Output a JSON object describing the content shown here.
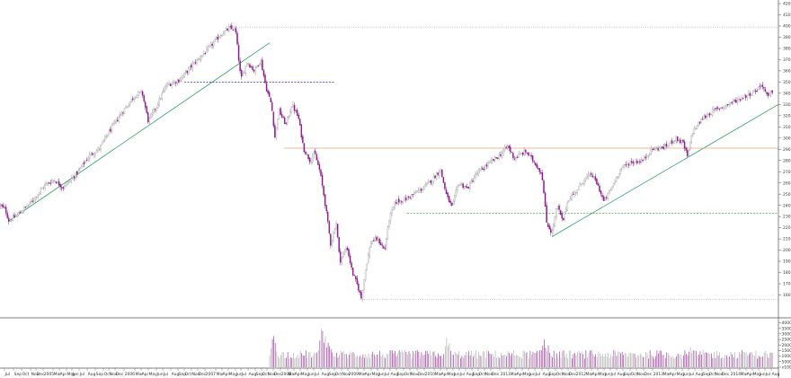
{
  "chart_data": {
    "type": "candlestick",
    "title": "",
    "xlabel": "",
    "ylabel": "",
    "grid": false,
    "legend": "none",
    "price": {
      "ylim": [
        150,
        420
      ],
      "yticks": [
        160,
        170,
        180,
        190,
        200,
        210,
        220,
        230,
        240,
        250,
        260,
        270,
        280,
        290,
        300,
        310,
        320,
        330,
        340,
        350,
        360,
        370,
        380,
        390,
        400,
        410,
        420
      ],
      "series": [
        {
          "x": 0,
          "y": 240
        },
        {
          "x": 6,
          "y": 236
        },
        {
          "x": 10,
          "y": 226
        },
        {
          "x": 20,
          "y": 232
        },
        {
          "x": 35,
          "y": 243
        },
        {
          "x": 50,
          "y": 258
        },
        {
          "x": 60,
          "y": 263
        },
        {
          "x": 70,
          "y": 256
        },
        {
          "x": 85,
          "y": 268
        },
        {
          "x": 100,
          "y": 285
        },
        {
          "x": 110,
          "y": 290
        },
        {
          "x": 120,
          "y": 304
        },
        {
          "x": 135,
          "y": 322
        },
        {
          "x": 150,
          "y": 338
        },
        {
          "x": 158,
          "y": 341
        },
        {
          "x": 165,
          "y": 315
        },
        {
          "x": 175,
          "y": 330
        },
        {
          "x": 185,
          "y": 347
        },
        {
          "x": 200,
          "y": 352
        },
        {
          "x": 215,
          "y": 366
        },
        {
          "x": 230,
          "y": 378
        },
        {
          "x": 245,
          "y": 392
        },
        {
          "x": 255,
          "y": 398
        },
        {
          "x": 262,
          "y": 397
        },
        {
          "x": 268,
          "y": 352
        },
        {
          "x": 275,
          "y": 368
        },
        {
          "x": 283,
          "y": 360
        },
        {
          "x": 290,
          "y": 370
        },
        {
          "x": 296,
          "y": 345
        },
        {
          "x": 302,
          "y": 330
        },
        {
          "x": 306,
          "y": 300
        },
        {
          "x": 310,
          "y": 325
        },
        {
          "x": 318,
          "y": 312
        },
        {
          "x": 325,
          "y": 330
        },
        {
          "x": 332,
          "y": 318
        },
        {
          "x": 338,
          "y": 290
        },
        {
          "x": 345,
          "y": 280
        },
        {
          "x": 350,
          "y": 287
        },
        {
          "x": 356,
          "y": 270
        },
        {
          "x": 362,
          "y": 240
        },
        {
          "x": 368,
          "y": 205
        },
        {
          "x": 374,
          "y": 225
        },
        {
          "x": 378,
          "y": 190
        },
        {
          "x": 386,
          "y": 203
        },
        {
          "x": 392,
          "y": 180
        },
        {
          "x": 398,
          "y": 168
        },
        {
          "x": 402,
          "y": 157
        },
        {
          "x": 407,
          "y": 185
        },
        {
          "x": 413,
          "y": 208
        },
        {
          "x": 420,
          "y": 210
        },
        {
          "x": 428,
          "y": 200
        },
        {
          "x": 433,
          "y": 228
        },
        {
          "x": 440,
          "y": 243
        },
        {
          "x": 450,
          "y": 245
        },
        {
          "x": 460,
          "y": 250
        },
        {
          "x": 470,
          "y": 255
        },
        {
          "x": 480,
          "y": 262
        },
        {
          "x": 490,
          "y": 272
        },
        {
          "x": 497,
          "y": 248
        },
        {
          "x": 503,
          "y": 238
        },
        {
          "x": 510,
          "y": 260
        },
        {
          "x": 520,
          "y": 255
        },
        {
          "x": 530,
          "y": 268
        },
        {
          "x": 545,
          "y": 278
        },
        {
          "x": 555,
          "y": 284
        },
        {
          "x": 565,
          "y": 293
        },
        {
          "x": 572,
          "y": 282
        },
        {
          "x": 585,
          "y": 288
        },
        {
          "x": 595,
          "y": 278
        },
        {
          "x": 603,
          "y": 268
        },
        {
          "x": 608,
          "y": 225
        },
        {
          "x": 614,
          "y": 215
        },
        {
          "x": 620,
          "y": 240
        },
        {
          "x": 626,
          "y": 225
        },
        {
          "x": 632,
          "y": 245
        },
        {
          "x": 640,
          "y": 252
        },
        {
          "x": 650,
          "y": 263
        },
        {
          "x": 658,
          "y": 268
        },
        {
          "x": 665,
          "y": 258
        },
        {
          "x": 672,
          "y": 243
        },
        {
          "x": 680,
          "y": 255
        },
        {
          "x": 690,
          "y": 272
        },
        {
          "x": 700,
          "y": 278
        },
        {
          "x": 715,
          "y": 280
        },
        {
          "x": 725,
          "y": 290
        },
        {
          "x": 740,
          "y": 292
        },
        {
          "x": 752,
          "y": 300
        },
        {
          "x": 760,
          "y": 295
        },
        {
          "x": 765,
          "y": 283
        },
        {
          "x": 770,
          "y": 305
        },
        {
          "x": 782,
          "y": 318
        },
        {
          "x": 795,
          "y": 325
        },
        {
          "x": 810,
          "y": 330
        },
        {
          "x": 825,
          "y": 336
        },
        {
          "x": 840,
          "y": 342
        },
        {
          "x": 848,
          "y": 348
        },
        {
          "x": 854,
          "y": 336
        },
        {
          "x": 860,
          "y": 343
        }
      ]
    },
    "annotations": [
      {
        "kind": "trendline",
        "color": "#2f9e6a",
        "from": {
          "x": 10,
          "y": 226
        },
        "to": {
          "x": 300,
          "y": 385
        }
      },
      {
        "kind": "trendline",
        "color": "#2f9e6a",
        "from": {
          "x": 614,
          "y": 212
        },
        "to": {
          "x": 866,
          "y": 330
        }
      },
      {
        "kind": "hline",
        "color": "#3333bb",
        "style": "dashed",
        "y": 350,
        "x_from": 205,
        "x_to": 372
      },
      {
        "kind": "hline",
        "color": "#e8a070",
        "style": "solid",
        "y": 291,
        "x_from": 316,
        "x_to": 866
      },
      {
        "kind": "hline",
        "color": "#44aa44",
        "style": "dashed",
        "y": 233,
        "x_from": 453,
        "x_to": 866
      },
      {
        "kind": "hline",
        "color": "#bbbbbb",
        "style": "dotted",
        "y": 156,
        "x_from": 400,
        "x_to": 866
      },
      {
        "kind": "hline",
        "color": "#bbbbbb",
        "style": "dotted",
        "y": 399,
        "x_from": 258,
        "x_to": 866
      }
    ],
    "volume": {
      "yticks": [
        {
          "label": "40000",
          "v": 40000
        },
        {
          "label": "35000",
          "v": 35000
        },
        {
          "label": "30000",
          "v": 30000
        },
        {
          "label": "25000",
          "v": 25000
        },
        {
          "label": "20000",
          "v": 20000
        },
        {
          "label": "15000",
          "v": 15000
        },
        {
          "label": "10000",
          "v": 10000
        },
        {
          "label": "5000",
          "v": 5000
        },
        {
          "label": "x10000",
          "v": 0
        }
      ],
      "ylim": [
        0,
        42000
      ],
      "start_x": 300,
      "baseline": 11000,
      "peaks": [
        {
          "x": 304,
          "v": 32000
        },
        {
          "x": 306,
          "v": 25000
        },
        {
          "x": 358,
          "v": 42000
        },
        {
          "x": 362,
          "v": 30000
        },
        {
          "x": 366,
          "v": 26000
        },
        {
          "x": 497,
          "v": 28000
        },
        {
          "x": 500,
          "v": 22000
        },
        {
          "x": 605,
          "v": 29000
        },
        {
          "x": 610,
          "v": 22000
        },
        {
          "x": 768,
          "v": 19000
        },
        {
          "x": 826,
          "v": 19000
        }
      ]
    },
    "x_labels": [
      {
        "x": 5,
        "text": "Jul"
      },
      {
        "x": 15,
        "text": "Sep"
      },
      {
        "x": 24,
        "text": "Oct"
      },
      {
        "x": 34,
        "text": "Nov"
      },
      {
        "x": 40,
        "text": "Dec"
      },
      {
        "x": 48,
        "text": "2005"
      },
      {
        "x": 59,
        "text": "Mar"
      },
      {
        "x": 66,
        "text": "Apr"
      },
      {
        "x": 74,
        "text": "May"
      },
      {
        "x": 80,
        "text": "Jun"
      },
      {
        "x": 88,
        "text": "Jul"
      },
      {
        "x": 97,
        "text": "Aug"
      },
      {
        "x": 106,
        "text": "Sep"
      },
      {
        "x": 115,
        "text": "Oct"
      },
      {
        "x": 121,
        "text": "Nov"
      },
      {
        "x": 128,
        "text": "Dec"
      },
      {
        "x": 138,
        "text": "2006"
      },
      {
        "x": 150,
        "text": "Mar"
      },
      {
        "x": 157,
        "text": "Apr"
      },
      {
        "x": 165,
        "text": "May"
      },
      {
        "x": 174,
        "text": "Jun"
      },
      {
        "x": 181,
        "text": "Jul"
      },
      {
        "x": 190,
        "text": "Aug"
      },
      {
        "x": 198,
        "text": "Sep"
      },
      {
        "x": 205,
        "text": "Oct"
      },
      {
        "x": 213,
        "text": "Nov"
      },
      {
        "x": 220,
        "text": "Dec"
      },
      {
        "x": 228,
        "text": "2007"
      },
      {
        "x": 240,
        "text": "Mar"
      },
      {
        "x": 247,
        "text": "Apr"
      },
      {
        "x": 254,
        "text": "May"
      },
      {
        "x": 262,
        "text": "Jun"
      },
      {
        "x": 268,
        "text": "Jul"
      },
      {
        "x": 276,
        "text": "Aug"
      },
      {
        "x": 284,
        "text": "Sep"
      },
      {
        "x": 291,
        "text": "Oct"
      },
      {
        "x": 297,
        "text": "Nov"
      },
      {
        "x": 304,
        "text": "Dec"
      },
      {
        "x": 312,
        "text": "2008"
      },
      {
        "x": 320,
        "text": "Mar"
      },
      {
        "x": 327,
        "text": "Apr"
      },
      {
        "x": 334,
        "text": "May"
      },
      {
        "x": 342,
        "text": "Jun"
      },
      {
        "x": 349,
        "text": "Jul"
      },
      {
        "x": 357,
        "text": "Aug"
      },
      {
        "x": 365,
        "text": "Sep"
      },
      {
        "x": 372,
        "text": "Oct"
      },
      {
        "x": 380,
        "text": "Nov"
      },
      {
        "x": 387,
        "text": "2009"
      },
      {
        "x": 398,
        "text": "Mar"
      },
      {
        "x": 405,
        "text": "Apr"
      },
      {
        "x": 413,
        "text": "May"
      },
      {
        "x": 420,
        "text": "Jun"
      },
      {
        "x": 427,
        "text": "Jul"
      },
      {
        "x": 434,
        "text": "Aug"
      },
      {
        "x": 441,
        "text": "Sep"
      },
      {
        "x": 449,
        "text": "Oct"
      },
      {
        "x": 456,
        "text": "Nov"
      },
      {
        "x": 464,
        "text": "Dec"
      },
      {
        "x": 472,
        "text": "2010"
      },
      {
        "x": 483,
        "text": "Mar"
      },
      {
        "x": 490,
        "text": "Apr"
      },
      {
        "x": 497,
        "text": "May"
      },
      {
        "x": 504,
        "text": "Jun"
      },
      {
        "x": 511,
        "text": "Jul"
      },
      {
        "x": 518,
        "text": "Aug"
      },
      {
        "x": 525,
        "text": "Sep"
      },
      {
        "x": 532,
        "text": "Oct"
      },
      {
        "x": 539,
        "text": "Nov"
      },
      {
        "x": 546,
        "text": "Dec"
      },
      {
        "x": 556,
        "text": "2011"
      },
      {
        "x": 567,
        "text": "Mar"
      },
      {
        "x": 574,
        "text": "Apr"
      },
      {
        "x": 581,
        "text": "May"
      },
      {
        "x": 588,
        "text": "Jun"
      },
      {
        "x": 595,
        "text": "Jul"
      },
      {
        "x": 603,
        "text": "Aug"
      },
      {
        "x": 610,
        "text": "Sep"
      },
      {
        "x": 618,
        "text": "Oct"
      },
      {
        "x": 625,
        "text": "Nov"
      },
      {
        "x": 632,
        "text": "Dec"
      },
      {
        "x": 640,
        "text": "2012"
      },
      {
        "x": 651,
        "text": "Mar"
      },
      {
        "x": 658,
        "text": "Apr"
      },
      {
        "x": 665,
        "text": "May"
      },
      {
        "x": 672,
        "text": "Jun"
      },
      {
        "x": 679,
        "text": "Jul"
      },
      {
        "x": 686,
        "text": "Aug"
      },
      {
        "x": 693,
        "text": "Sep"
      },
      {
        "x": 701,
        "text": "Oct"
      },
      {
        "x": 708,
        "text": "Nov"
      },
      {
        "x": 716,
        "text": "Dec"
      },
      {
        "x": 726,
        "text": "2013"
      },
      {
        "x": 737,
        "text": "Mar"
      },
      {
        "x": 744,
        "text": "Apr"
      },
      {
        "x": 752,
        "text": "May"
      },
      {
        "x": 759,
        "text": "Jun"
      },
      {
        "x": 766,
        "text": "Jul"
      },
      {
        "x": 773,
        "text": "Aug"
      },
      {
        "x": 781,
        "text": "Sep"
      },
      {
        "x": 788,
        "text": "Oct"
      },
      {
        "x": 795,
        "text": "Nov"
      },
      {
        "x": 802,
        "text": "Dec"
      },
      {
        "x": 812,
        "text": "2014"
      },
      {
        "x": 823,
        "text": "Mar"
      },
      {
        "x": 830,
        "text": "Apr"
      },
      {
        "x": 837,
        "text": "May"
      },
      {
        "x": 844,
        "text": "Jun"
      },
      {
        "x": 851,
        "text": "Jul"
      },
      {
        "x": 858,
        "text": "Aug"
      }
    ],
    "colors": {
      "up": "#9a9a9a",
      "down": "#8b1a8b",
      "border": "#555555",
      "volume_up": "#b0b0b0",
      "volume_down": "#a040a0"
    }
  }
}
